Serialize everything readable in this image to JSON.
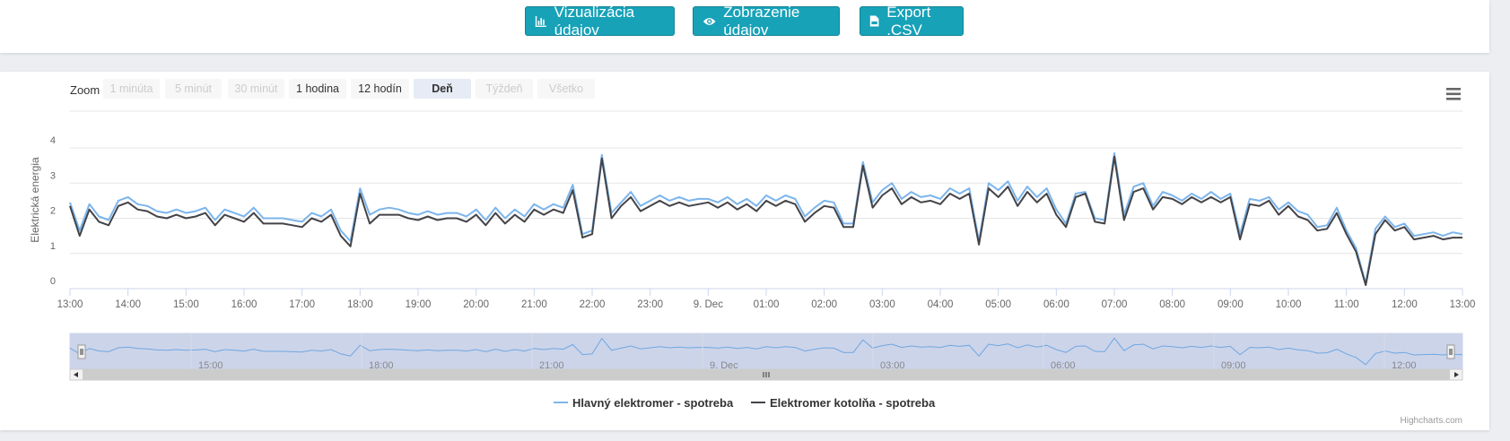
{
  "toolbar": {
    "buttons": [
      {
        "label": "Vizualizácia údajov",
        "icon": "bar-chart-icon"
      },
      {
        "label": "Zobrazenie údajov",
        "icon": "eye-icon"
      },
      {
        "label": "Export .CSV",
        "icon": "csv-file-icon"
      }
    ]
  },
  "range_selector": {
    "label": "Zoom",
    "buttons": [
      {
        "label": "1 minúta",
        "state": "disabled"
      },
      {
        "label": "5 minút",
        "state": "disabled"
      },
      {
        "label": "30 minút",
        "state": "disabled"
      },
      {
        "label": "1 hodina",
        "state": "normal"
      },
      {
        "label": "12 hodín",
        "state": "normal"
      },
      {
        "label": "Deň",
        "state": "selected"
      },
      {
        "label": "Týždeň",
        "state": "disabled"
      },
      {
        "label": "Všetko",
        "state": "disabled"
      }
    ]
  },
  "credits": "Highcharts.com",
  "navigator": {
    "ticks": [
      "15:00",
      "18:00",
      "21:00",
      "9. Dec",
      "03:00",
      "06:00",
      "09:00",
      "12:00"
    ]
  },
  "chart_data": {
    "type": "line",
    "title": "",
    "xlabel": "",
    "ylabel": "Elektrická energia",
    "ylim": [
      0,
      4
    ],
    "yticks": [
      0,
      1,
      2,
      3,
      4
    ],
    "x_tick_labels": [
      "13:00",
      "14:00",
      "15:00",
      "16:00",
      "17:00",
      "18:00",
      "19:00",
      "20:00",
      "21:00",
      "22:00",
      "23:00",
      "9. Dec",
      "01:00",
      "02:00",
      "03:00",
      "04:00",
      "05:00",
      "06:00",
      "07:00",
      "08:00",
      "09:00",
      "10:00",
      "11:00",
      "12:00",
      "13:00"
    ],
    "x_range": [
      "13:00",
      "13:00 (next day)"
    ],
    "legend_position": "bottom-center",
    "grid": true,
    "series": [
      {
        "name": "Hlavný elektromer - spotreba",
        "color": "#7cb5ec",
        "values": [
          2.45,
          1.65,
          2.4,
          2.05,
          1.95,
          2.5,
          2.6,
          2.4,
          2.35,
          2.2,
          2.15,
          2.25,
          2.15,
          2.2,
          2.3,
          1.95,
          2.25,
          2.15,
          2.05,
          2.3,
          2.0,
          2.0,
          2.0,
          1.95,
          1.9,
          2.15,
          2.05,
          2.25,
          1.65,
          1.35,
          2.85,
          2.1,
          2.25,
          2.3,
          2.25,
          2.15,
          2.1,
          2.2,
          2.1,
          2.15,
          2.15,
          2.05,
          2.25,
          1.95,
          2.3,
          2.0,
          2.25,
          2.05,
          2.4,
          2.25,
          2.4,
          2.3,
          2.95,
          1.55,
          1.65,
          3.8,
          2.15,
          2.45,
          2.75,
          2.35,
          2.5,
          2.65,
          2.5,
          2.6,
          2.5,
          2.55,
          2.55,
          2.45,
          2.6,
          2.4,
          2.55,
          2.35,
          2.65,
          2.5,
          2.65,
          2.55,
          2.05,
          2.3,
          2.5,
          2.45,
          1.85,
          1.85,
          3.6,
          2.45,
          2.8,
          3.0,
          2.55,
          2.75,
          2.6,
          2.65,
          2.55,
          2.85,
          2.7,
          2.85,
          1.35,
          3.0,
          2.8,
          3.05,
          2.5,
          2.9,
          2.6,
          2.85,
          2.25,
          1.85,
          2.7,
          2.75,
          2.0,
          1.95,
          3.85,
          2.1,
          2.9,
          3.0,
          2.35,
          2.75,
          2.65,
          2.5,
          2.7,
          2.55,
          2.75,
          2.55,
          2.7,
          1.55,
          2.55,
          2.5,
          2.6,
          2.25,
          2.45,
          2.2,
          2.1,
          1.75,
          1.8,
          2.3,
          1.65,
          1.15,
          0.15,
          1.7,
          2.05,
          1.75,
          1.85,
          1.5,
          1.55,
          1.6,
          1.5,
          1.6,
          1.55
        ]
      },
      {
        "name": "Elektromer kotolňa - spotreba",
        "color": "#434348",
        "values": [
          2.35,
          1.5,
          2.25,
          1.9,
          1.8,
          2.35,
          2.45,
          2.25,
          2.2,
          2.05,
          2.0,
          2.1,
          2.0,
          2.05,
          2.15,
          1.8,
          2.1,
          2.0,
          1.9,
          2.15,
          1.85,
          1.85,
          1.85,
          1.8,
          1.75,
          2.0,
          1.9,
          2.1,
          1.5,
          1.2,
          2.7,
          1.85,
          2.1,
          2.1,
          2.1,
          2.0,
          1.95,
          2.05,
          1.95,
          2.0,
          2.0,
          1.9,
          2.1,
          1.8,
          2.15,
          1.85,
          2.1,
          1.9,
          2.25,
          2.1,
          2.25,
          2.15,
          2.8,
          1.45,
          1.55,
          3.7,
          2.0,
          2.35,
          2.6,
          2.2,
          2.35,
          2.5,
          2.35,
          2.45,
          2.35,
          2.4,
          2.45,
          2.3,
          2.45,
          2.25,
          2.4,
          2.2,
          2.5,
          2.35,
          2.5,
          2.4,
          1.9,
          2.15,
          2.35,
          2.3,
          1.75,
          1.75,
          3.5,
          2.3,
          2.65,
          2.85,
          2.4,
          2.6,
          2.45,
          2.5,
          2.4,
          2.7,
          2.55,
          2.7,
          1.25,
          2.85,
          2.6,
          2.9,
          2.35,
          2.75,
          2.45,
          2.7,
          2.1,
          1.75,
          2.6,
          2.7,
          1.9,
          1.85,
          3.75,
          1.95,
          2.75,
          2.85,
          2.25,
          2.6,
          2.55,
          2.4,
          2.6,
          2.45,
          2.6,
          2.45,
          2.6,
          1.4,
          2.4,
          2.35,
          2.5,
          2.1,
          2.35,
          2.05,
          1.95,
          1.65,
          1.7,
          2.15,
          1.55,
          1.05,
          0.1,
          1.55,
          1.95,
          1.65,
          1.75,
          1.4,
          1.45,
          1.5,
          1.4,
          1.45,
          1.45
        ]
      }
    ]
  }
}
